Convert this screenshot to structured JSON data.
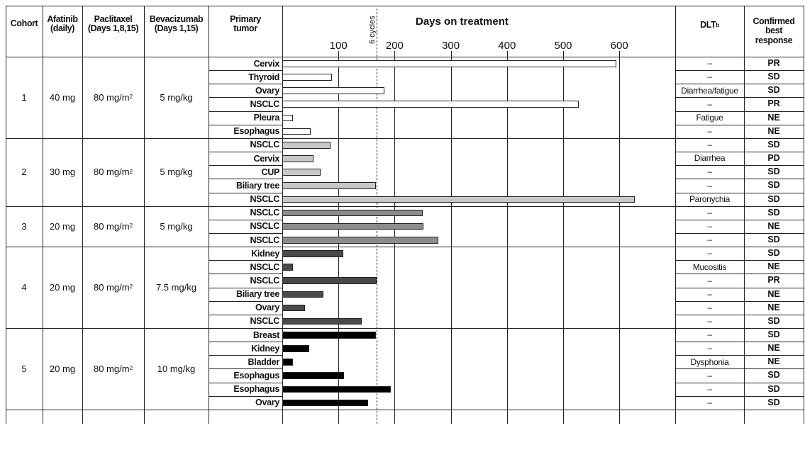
{
  "headers": {
    "cohort": "Cohort",
    "afatinib": [
      "Afatinib",
      "(daily)"
    ],
    "paclitaxel": [
      "Paclitaxel",
      "(Days 1,8,15)"
    ],
    "bevacizumab": [
      "Bevacizumab",
      "(Days 1,15)"
    ],
    "primary_tumor": [
      "Primary",
      "tumor"
    ],
    "dlt": "DLT",
    "dlt_sup": "b",
    "best_response": [
      "Confirmed",
      "best",
      "response"
    ]
  },
  "cohorts": [
    {
      "cohort": "1",
      "afatinib": "40 mg",
      "paclitaxel": "80 mg/m",
      "paclitaxel_sup": "2",
      "bevacizumab": "5 mg/kg",
      "bar_color": "#ffffff",
      "patients": [
        {
          "tumor": "Cervix",
          "days": 595,
          "dlt": "–",
          "response": "PR"
        },
        {
          "tumor": "Thyroid",
          "days": 89,
          "dlt": "–",
          "response": "SD"
        },
        {
          "tumor": "Ovary",
          "days": 182,
          "dlt": "Diarrhea/fatigue",
          "response": "SD"
        },
        {
          "tumor": "NSCLC",
          "days": 528,
          "dlt": "–",
          "response": "PR"
        },
        {
          "tumor": "Pleura",
          "days": 19,
          "dlt": "Fatigue",
          "response": "NE"
        },
        {
          "tumor": "Esophagus",
          "days": 50,
          "dlt": "–",
          "response": "NE"
        }
      ]
    },
    {
      "cohort": "2",
      "afatinib": "30 mg",
      "paclitaxel": "80 mg/m",
      "paclitaxel_sup": "2",
      "bevacizumab": "5 mg/kg",
      "bar_color": "#c8c8c8",
      "patients": [
        {
          "tumor": "NSCLC",
          "days": 86,
          "dlt": "–",
          "response": "SD"
        },
        {
          "tumor": "Cervix",
          "days": 55,
          "dlt": "Diarrhea",
          "response": "PD"
        },
        {
          "tumor": "CUP",
          "days": 68,
          "dlt": "–",
          "response": "SD"
        },
        {
          "tumor": "Biliary tree",
          "days": 167,
          "dlt": "–",
          "response": "SD"
        },
        {
          "tumor": "NSCLC",
          "days": 628,
          "dlt": "Paronychia",
          "response": "SD"
        }
      ]
    },
    {
      "cohort": "3",
      "afatinib": "20 mg",
      "paclitaxel": "80 mg/m",
      "paclitaxel_sup": "2",
      "bevacizumab": "5 mg/kg",
      "bar_color": "#8c8c8c",
      "patients": [
        {
          "tumor": "NSCLC",
          "days": 250,
          "dlt": "–",
          "response": "SD"
        },
        {
          "tumor": "NSCLC",
          "days": 251,
          "dlt": "–",
          "response": "NE"
        },
        {
          "tumor": "NSCLC",
          "days": 278,
          "dlt": "–",
          "response": "SD"
        }
      ]
    },
    {
      "cohort": "4",
      "afatinib": "20 mg",
      "paclitaxel": "80 mg/m",
      "paclitaxel_sup": "2",
      "bevacizumab": "7.5 mg/kg",
      "bar_color": "#4a4a4a",
      "patients": [
        {
          "tumor": "Kidney",
          "days": 108,
          "dlt": "–",
          "response": "SD"
        },
        {
          "tumor": "NSCLC",
          "days": 19,
          "dlt": "Mucositis",
          "response": "NE"
        },
        {
          "tumor": "NSCLC",
          "days": 168,
          "dlt": "–",
          "response": "PR"
        },
        {
          "tumor": "Biliary tree",
          "days": 73,
          "dlt": "–",
          "response": "NE"
        },
        {
          "tumor": "Ovary",
          "days": 41,
          "dlt": "–",
          "response": "NE"
        },
        {
          "tumor": "NSCLC",
          "days": 141,
          "dlt": "–",
          "response": "SD"
        }
      ]
    },
    {
      "cohort": "5",
      "afatinib": "20 mg",
      "paclitaxel": "80 mg/m",
      "paclitaxel_sup": "2",
      "bevacizumab": "10 mg/kg",
      "bar_color": "#000000",
      "patients": [
        {
          "tumor": "Breast",
          "days": 167,
          "dlt": "–",
          "response": "SD"
        },
        {
          "tumor": "Kidney",
          "days": 48,
          "dlt": "–",
          "response": "NE"
        },
        {
          "tumor": "Bladder",
          "days": 19,
          "dlt": "Dysphonia",
          "response": "NE"
        },
        {
          "tumor": "Esophagus",
          "days": 110,
          "dlt": "–",
          "response": "SD"
        },
        {
          "tumor": "Esophagus",
          "days": 193,
          "dlt": "–",
          "response": "SD"
        },
        {
          "tumor": "Ovary",
          "days": 153,
          "dlt": "–",
          "response": "SD"
        }
      ]
    }
  ],
  "chart_data": {
    "type": "bar",
    "orientation": "horizontal",
    "title": "Days on treatment",
    "xlim": [
      0,
      650
    ],
    "xticks": [
      100,
      200,
      300,
      400,
      500,
      600
    ],
    "grid": true,
    "reference_line": {
      "x": 168,
      "label": "6 cycles",
      "style": "dashed"
    },
    "categories": [
      "Cervix",
      "Thyroid",
      "Ovary",
      "NSCLC",
      "Pleura",
      "Esophagus",
      "NSCLC",
      "Cervix",
      "CUP",
      "Biliary tree",
      "NSCLC",
      "NSCLC",
      "NSCLC",
      "NSCLC",
      "Kidney",
      "NSCLC",
      "NSCLC",
      "Biliary tree",
      "Ovary",
      "NSCLC",
      "Breast",
      "Kidney",
      "Bladder",
      "Esophagus",
      "Esophagus",
      "Ovary"
    ],
    "values": [
      595,
      89,
      182,
      528,
      19,
      50,
      86,
      55,
      68,
      167,
      628,
      250,
      251,
      278,
      108,
      19,
      168,
      73,
      41,
      141,
      167,
      48,
      19,
      110,
      193,
      153
    ],
    "series_groups": [
      "Cohort 1",
      "Cohort 1",
      "Cohort 1",
      "Cohort 1",
      "Cohort 1",
      "Cohort 1",
      "Cohort 2",
      "Cohort 2",
      "Cohort 2",
      "Cohort 2",
      "Cohort 2",
      "Cohort 3",
      "Cohort 3",
      "Cohort 3",
      "Cohort 4",
      "Cohort 4",
      "Cohort 4",
      "Cohort 4",
      "Cohort 4",
      "Cohort 4",
      "Cohort 5",
      "Cohort 5",
      "Cohort 5",
      "Cohort 5",
      "Cohort 5",
      "Cohort 5"
    ]
  }
}
